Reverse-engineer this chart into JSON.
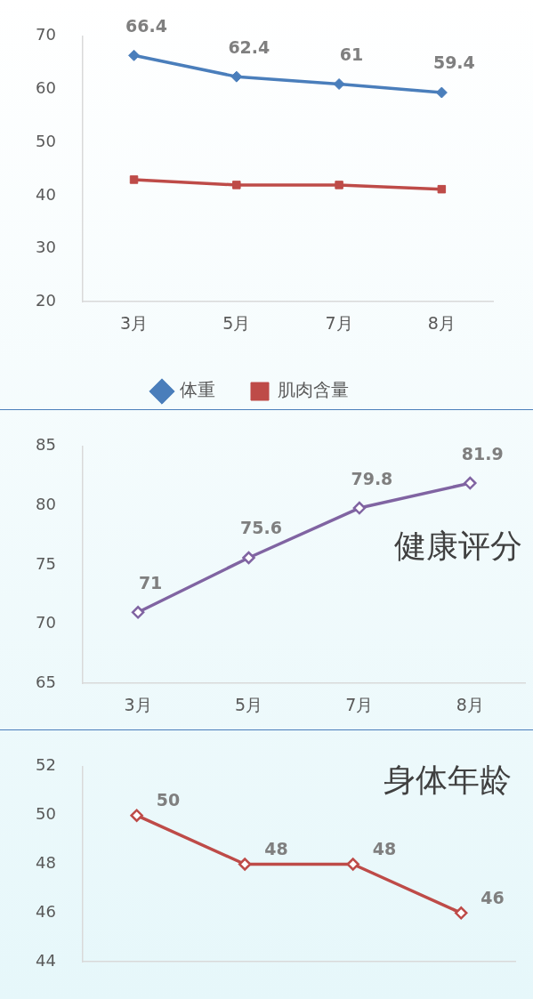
{
  "chart_data": [
    {
      "type": "line",
      "categories": [
        "3月",
        "5月",
        "7月",
        "8月"
      ],
      "ylim": [
        20,
        70
      ],
      "yticks": [
        20,
        30,
        40,
        50,
        60,
        70
      ],
      "grid": false,
      "legend": "bottom",
      "series": [
        {
          "name": "体重",
          "color": "#4a7ebb",
          "marker": "diamond",
          "values": [
            66.4,
            62.4,
            61,
            59.4
          ],
          "value_labels": [
            "66.4",
            "62.4",
            "61",
            "59.4"
          ]
        },
        {
          "name": "肌肉含量",
          "color": "#be4b48",
          "marker": "square",
          "values": [
            43,
            42,
            42,
            41.2
          ]
        }
      ]
    },
    {
      "type": "line",
      "title": "健康评分",
      "categories": [
        "3月",
        "5月",
        "7月",
        "8月"
      ],
      "ylim": [
        65,
        85
      ],
      "yticks": [
        65,
        70,
        75,
        80,
        85
      ],
      "grid": false,
      "marker": "diamond",
      "data_labels": true,
      "series": [
        {
          "color": "#8064a2",
          "values": [
            71,
            75.6,
            79.8,
            81.9
          ]
        }
      ]
    },
    {
      "type": "line",
      "title": "身体年龄",
      "categories": [
        null,
        null,
        null,
        null
      ],
      "tick_labels": "y",
      "ylim": [
        44,
        52
      ],
      "yticks": [
        44,
        46,
        48,
        50,
        52
      ],
      "grid": false,
      "marker": "diamond",
      "data_labels": true,
      "series": [
        {
          "color": "#be4b48",
          "values": [
            50,
            48,
            48,
            46
          ]
        }
      ]
    }
  ]
}
